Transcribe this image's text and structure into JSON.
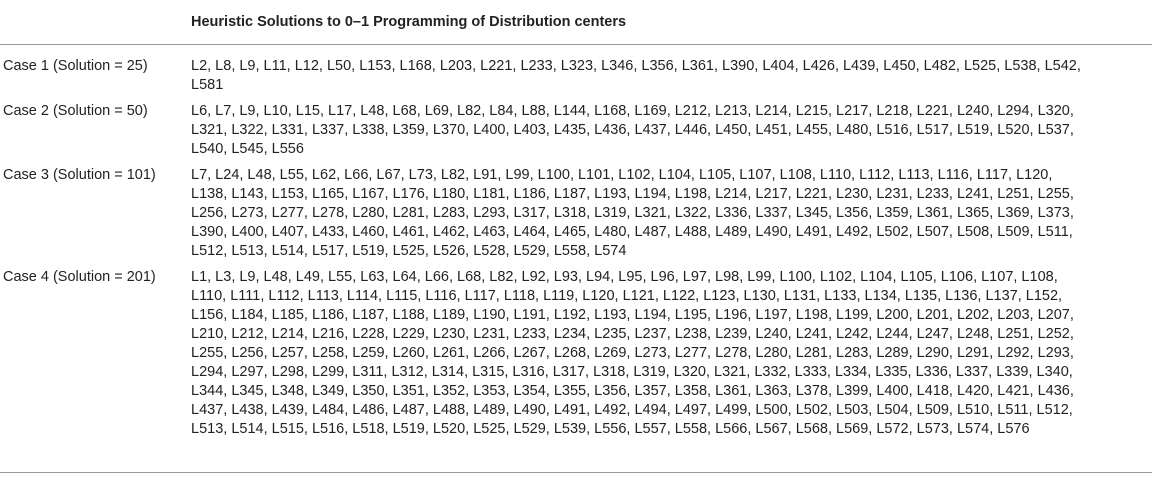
{
  "table": {
    "header": {
      "case": "",
      "solutions": "Heuristic Solutions to 0–1 Programming of Distribution centers"
    },
    "rows": [
      {
        "case": "Case 1 (Solution = 25)",
        "lines": [
          "L2, L8, L9, L11, L12, L50, L153, L168, L203, L221, L233, L323, L346, L356, L361, L390, L404, L426, L439, L450, L482, L525, L538, L542,",
          "L581"
        ]
      },
      {
        "case": "Case 2 (Solution = 50)",
        "lines": [
          "L6, L7, L9, L10, L15, L17, L48, L68, L69, L82, L84, L88, L144, L168, L169, L212, L213, L214, L215, L217, L218, L221, L240, L294, L320,",
          "L321, L322, L331, L337, L338, L359, L370, L400, L403, L435, L436, L437, L446, L450, L451, L455, L480, L516, L517, L519, L520, L537,",
          "L540, L545, L556"
        ]
      },
      {
        "case": "Case 3 (Solution = 101)",
        "lines": [
          "L7, L24, L48, L55, L62, L66, L67, L73, L82, L91, L99, L100, L101, L102, L104, L105, L107, L108, L110, L112, L113, L116, L117, L120,",
          "L138, L143, L153, L165, L167, L176, L180, L181, L186, L187, L193, L194, L198, L214, L217, L221, L230, L231, L233, L241, L251, L255,",
          "L256, L273, L277, L278, L280, L281, L283, L293, L317, L318, L319, L321, L322, L336, L337, L345, L356, L359, L361, L365, L369, L373,",
          "L390, L400, L407, L433, L460, L461, L462, L463, L464, L465, L480, L487, L488, L489, L490, L491, L492, L502, L507, L508, L509, L511,",
          "L512, L513, L514, L517, L519, L525, L526, L528, L529, L558, L574"
        ]
      },
      {
        "case": "Case 4 (Solution = 201)",
        "lines": [
          "L1, L3, L9, L48, L49, L55, L63, L64, L66, L68, L82, L92, L93, L94, L95, L96, L97, L98, L99, L100, L102, L104, L105, L106, L107, L108,",
          "L110, L111, L112, L113, L114, L115, L116, L117, L118, L119, L120, L121, L122, L123, L130, L131, L133, L134, L135, L136, L137, L152,",
          "L156, L184, L185, L186, L187, L188, L189, L190, L191, L192, L193, L194, L195, L196, L197, L198, L199, L200, L201, L202, L203, L207,",
          "L210, L212, L214, L216, L228, L229, L230, L231, L233, L234, L235, L237, L238, L239, L240, L241, L242, L244, L247, L248, L251, L252,",
          "L255, L256, L257, L258, L259, L260, L261, L266, L267, L268, L269, L273, L277, L278, L280, L281, L283, L289, L290, L291, L292, L293,",
          "L294, L297, L298, L299, L311, L312, L314, L315, L316, L317, L318, L319, L320, L321, L332, L333, L334, L335, L336, L337, L339, L340,",
          "L344, L345, L348, L349, L350, L351, L352, L353, L354, L355, L356, L357, L358, L361, L363, L378, L399, L400, L418, L420, L421, L436,",
          "L437, L438, L439, L484, L486, L487, L488, L489, L490, L491, L492, L494, L497, L499, L500, L502, L503, L504, L509, L510, L511, L512,",
          "L513, L514, L515, L516, L518, L519, L520, L525, L529, L539, L556, L557, L558, L566, L567, L568, L569, L572, L573, L574, L576"
        ]
      }
    ]
  }
}
